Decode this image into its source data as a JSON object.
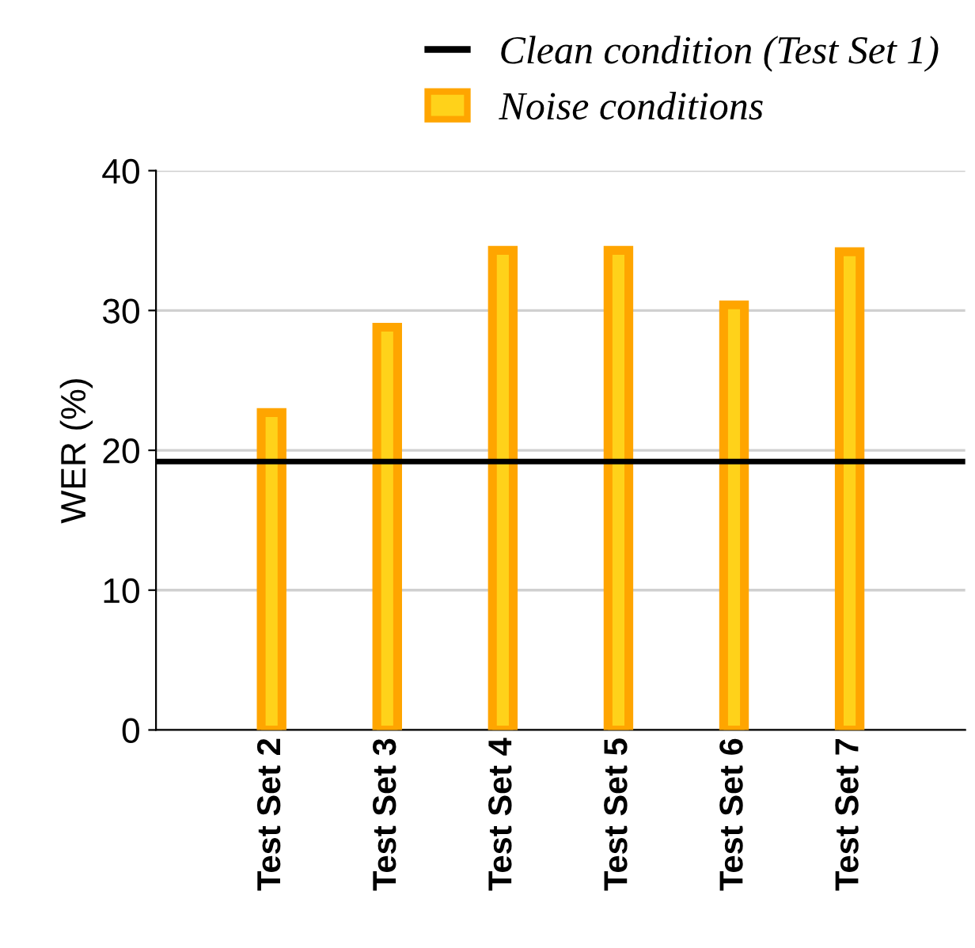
{
  "chart_data": {
    "type": "bar",
    "ylabel": "WER (%)",
    "categories": [
      "Test Set 2",
      "Test Set 3",
      "Test Set 4",
      "Test Set 5",
      "Test Set 6",
      "Test Set 7"
    ],
    "series": [
      {
        "name": "Noise conditions",
        "color": "#ffa500",
        "values": [
          22.7,
          28.8,
          34.3,
          34.3,
          30.4,
          34.2
        ]
      }
    ],
    "ref_lines": [
      {
        "axis": "y",
        "value": 19.2,
        "label": "Clean condition (Test Set 1)",
        "color": "#000000"
      }
    ],
    "ylim": [
      0,
      40
    ],
    "yticks": [
      0,
      10,
      20,
      30,
      40
    ],
    "grid": "y",
    "legend": "top right"
  }
}
